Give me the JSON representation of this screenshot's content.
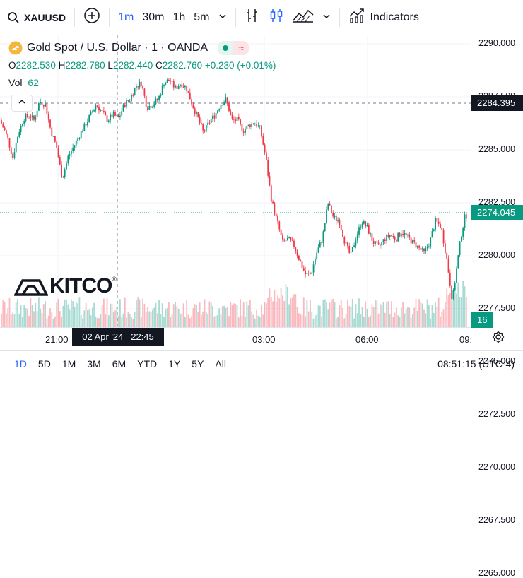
{
  "toolbar": {
    "symbol": "XAUUSD",
    "intervals": [
      "1m",
      "30m",
      "1h",
      "5m"
    ],
    "active_interval": "1m",
    "indicators_label": "Indicators"
  },
  "legend": {
    "title": "Gold Spot / U.S. Dollar · 1 · OANDA",
    "ohlc": {
      "o_label": "O",
      "o": "2282.530",
      "h_label": "H",
      "h": "2282.780",
      "l_label": "L",
      "l": "2282.440",
      "c_label": "C",
      "c": "2282.760",
      "change": "+0.230 (+0.01%)"
    },
    "volume_label": "Vol",
    "volume_value": "62"
  },
  "brand": {
    "logo_text": "KITCO"
  },
  "price_axis": {
    "ticks": [
      "2290.000",
      "2287.500",
      "2285.000",
      "2282.500",
      "2280.000",
      "2277.500",
      "2275.000",
      "2272.500",
      "2270.000",
      "2267.500",
      "2265.000"
    ],
    "crosshair_price": "2284.395",
    "last_price": "2274.045",
    "volume_tag": "16"
  },
  "time_axis": {
    "labels": [
      "21:00",
      "03:00",
      "06:00",
      "09:"
    ],
    "crosshair_time": "02 Apr '24   22:45"
  },
  "bottom_bar": {
    "ranges": [
      "1D",
      "5D",
      "1M",
      "3M",
      "6M",
      "YTD",
      "1Y",
      "5Y",
      "All"
    ],
    "active_range": "1D",
    "clock": "08:51:15 (UTC-4)"
  },
  "colors": {
    "up": "#089981",
    "down": "#f23645",
    "accent": "#2962ff"
  },
  "chart_data": {
    "type": "candlestick",
    "y_range": [
      2263.5,
      2291.0
    ],
    "x_labels": [
      "21:00",
      "03:00",
      "06:00",
      "09:"
    ],
    "anchors": [
      [
        0,
        2283.0
      ],
      [
        10,
        2281.5
      ],
      [
        18,
        2279.5
      ],
      [
        26,
        2281.8
      ],
      [
        34,
        2283.2
      ],
      [
        42,
        2283.5
      ],
      [
        48,
        2283.0
      ],
      [
        56,
        2284.8
      ],
      [
        64,
        2284.5
      ],
      [
        72,
        2282.0
      ],
      [
        80,
        2280.5
      ],
      [
        88,
        2277.5
      ],
      [
        96,
        2279.5
      ],
      [
        104,
        2280.5
      ],
      [
        112,
        2281.5
      ],
      [
        120,
        2282.5
      ],
      [
        128,
        2283.5
      ],
      [
        136,
        2284.5
      ],
      [
        144,
        2283.8
      ],
      [
        152,
        2283.0
      ],
      [
        160,
        2283.5
      ],
      [
        168,
        2283.2
      ],
      [
        176,
        2284.5
      ],
      [
        184,
        2285.0
      ],
      [
        192,
        2286.2
      ],
      [
        200,
        2286.5
      ],
      [
        208,
        2284.2
      ],
      [
        216,
        2284.5
      ],
      [
        224,
        2285.0
      ],
      [
        232,
        2286.5
      ],
      [
        240,
        2286.8
      ],
      [
        248,
        2286.0
      ],
      [
        256,
        2286.5
      ],
      [
        264,
        2286.0
      ],
      [
        272,
        2284.5
      ],
      [
        280,
        2283.2
      ],
      [
        288,
        2281.8
      ],
      [
        296,
        2282.8
      ],
      [
        304,
        2283.5
      ],
      [
        312,
        2284.5
      ],
      [
        320,
        2285.0
      ],
      [
        328,
        2283.0
      ],
      [
        336,
        2283.0
      ],
      [
        344,
        2282.0
      ],
      [
        352,
        2282.5
      ],
      [
        360,
        2282.8
      ],
      [
        368,
        2282.2
      ],
      [
        376,
        2279.5
      ],
      [
        384,
        2275.5
      ],
      [
        392,
        2273.5
      ],
      [
        400,
        2271.5
      ],
      [
        408,
        2271.8
      ],
      [
        416,
        2271.2
      ],
      [
        424,
        2269.8
      ],
      [
        432,
        2268.5
      ],
      [
        440,
        2268.5
      ],
      [
        448,
        2270.5
      ],
      [
        456,
        2271.8
      ],
      [
        464,
        2275.2
      ],
      [
        472,
        2273.8
      ],
      [
        480,
        2273.5
      ],
      [
        488,
        2271.5
      ],
      [
        496,
        2270.2
      ],
      [
        504,
        2272.0
      ],
      [
        512,
        2273.5
      ],
      [
        520,
        2272.8
      ],
      [
        528,
        2271.5
      ],
      [
        536,
        2271.0
      ],
      [
        544,
        2271.8
      ],
      [
        552,
        2272.2
      ],
      [
        560,
        2271.8
      ],
      [
        568,
        2272.5
      ],
      [
        576,
        2272.0
      ],
      [
        584,
        2271.5
      ],
      [
        592,
        2271.0
      ],
      [
        600,
        2270.5
      ],
      [
        608,
        2271.5
      ],
      [
        616,
        2273.5
      ],
      [
        624,
        2273.0
      ],
      [
        632,
        2270.0
      ],
      [
        636,
        2268.0
      ],
      [
        640,
        2266.0
      ],
      [
        646,
        2269.0
      ],
      [
        652,
        2272.0
      ],
      [
        658,
        2274.0
      ]
    ]
  }
}
